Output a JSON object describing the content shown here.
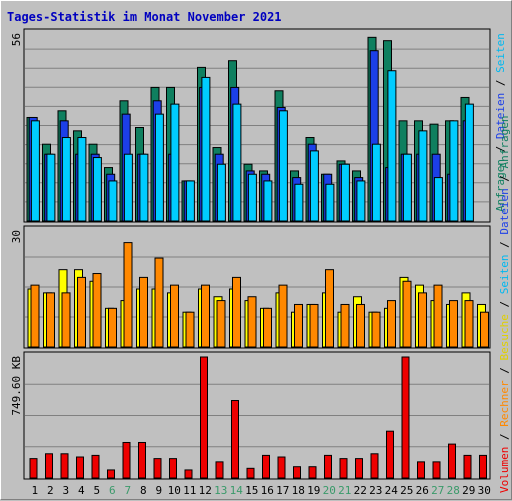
{
  "title": "Tages-Statistik im Monat November 2021",
  "colors": {
    "anfragen": "#0f7f5f",
    "dateien": "#1c3fe8",
    "seiten": "#00ccff",
    "besuche": "#ffff00",
    "rechner": "#ff8800",
    "volumen": "#ee0000",
    "weekday_label": "#000000",
    "weekend_label": "#3a9a6a"
  },
  "panels": {
    "top_max_label": "56",
    "middle_max_label": "30",
    "bottom_max_label": "749.60 KB"
  },
  "legend_right": [
    {
      "text": "Anfragen",
      "color": "#0f7f5f"
    },
    {
      "text": " / ",
      "color": "#000000"
    },
    {
      "text": "Dateien",
      "color": "#1c3fe8"
    },
    {
      "text": " / ",
      "color": "#000000"
    },
    {
      "text": "Seiten",
      "color": "#00b8f0"
    }
  ],
  "legend_left": [
    {
      "text": "Volumen",
      "color": "#ee0000"
    },
    {
      "text": " / ",
      "color": "#000000"
    },
    {
      "text": "Rechner",
      "color": "#ff8800"
    },
    {
      "text": " / ",
      "color": "#000000"
    },
    {
      "text": "Besuche",
      "color": "#e0d000"
    },
    {
      "text": " / ",
      "color": "#000000"
    },
    {
      "text": "Seiten",
      "color": "#00b8f0"
    },
    {
      "text": " / ",
      "color": "#000000"
    },
    {
      "text": "Dateien",
      "color": "#1c3fe8"
    },
    {
      "text": " / ",
      "color": "#000000"
    },
    {
      "text": "Anfragen",
      "color": "#0f7f5f"
    }
  ],
  "chart_data": {
    "type": "bar",
    "categories": [
      "1",
      "2",
      "3",
      "4",
      "5",
      "6",
      "7",
      "8",
      "9",
      "10",
      "11",
      "12",
      "13",
      "14",
      "15",
      "16",
      "17",
      "18",
      "19",
      "20",
      "21",
      "22",
      "23",
      "24",
      "25",
      "26",
      "27",
      "28",
      "29",
      "30"
    ],
    "weekend_days": [
      "6",
      "7",
      "13",
      "14",
      "20",
      "21",
      "27",
      "28"
    ],
    "top": {
      "ylim": [
        0,
        56
      ],
      "series": [
        {
          "name": "Anfragen",
          "values": [
            31,
            23,
            33,
            27,
            23,
            16,
            36,
            28,
            40,
            40,
            12,
            46,
            22,
            48,
            17,
            15,
            39,
            15,
            25,
            14,
            18,
            15,
            55,
            54,
            30,
            30,
            29,
            30,
            37,
            0
          ]
        },
        {
          "name": "Dateien",
          "values": [
            31,
            20,
            30,
            20,
            20,
            14,
            32,
            20,
            36,
            20,
            12,
            40,
            20,
            40,
            15,
            14,
            34,
            13,
            23,
            14,
            17,
            13,
            51,
            16,
            20,
            20,
            20,
            14,
            30,
            0
          ]
        },
        {
          "name": "Seiten",
          "values": [
            30,
            20,
            25,
            25,
            19,
            12,
            20,
            20,
            32,
            35,
            12,
            43,
            17,
            35,
            14,
            12,
            33,
            11,
            21,
            11,
            17,
            12,
            23,
            45,
            20,
            27,
            13,
            30,
            35,
            0
          ]
        }
      ]
    },
    "middle": {
      "ylim": [
        0,
        30
      ],
      "series": [
        {
          "name": "Besuche",
          "values": [
            15,
            14,
            20,
            20,
            17,
            10,
            12,
            15,
            15,
            14,
            9,
            15,
            13,
            15,
            12,
            10,
            14,
            9,
            11,
            14,
            9,
            13,
            9,
            10,
            18,
            16,
            12,
            11,
            14,
            11
          ]
        },
        {
          "name": "Rechner",
          "values": [
            16,
            14,
            14,
            18,
            19,
            10,
            27,
            18,
            23,
            16,
            9,
            16,
            12,
            18,
            13,
            10,
            16,
            11,
            11,
            20,
            11,
            11,
            9,
            12,
            17,
            14,
            16,
            12,
            12,
            9
          ]
        }
      ]
    },
    "bottom": {
      "ylim": [
        0,
        749.6
      ],
      "unit": "KB",
      "series": [
        {
          "name": "Volumen",
          "values": [
            120,
            150,
            150,
            130,
            140,
            50,
            220,
            220,
            120,
            120,
            50,
            749.6,
            100,
            480,
            60,
            140,
            130,
            70,
            70,
            140,
            120,
            120,
            150,
            290,
            749.6,
            100,
            100,
            210,
            140,
            140
          ]
        }
      ]
    }
  }
}
